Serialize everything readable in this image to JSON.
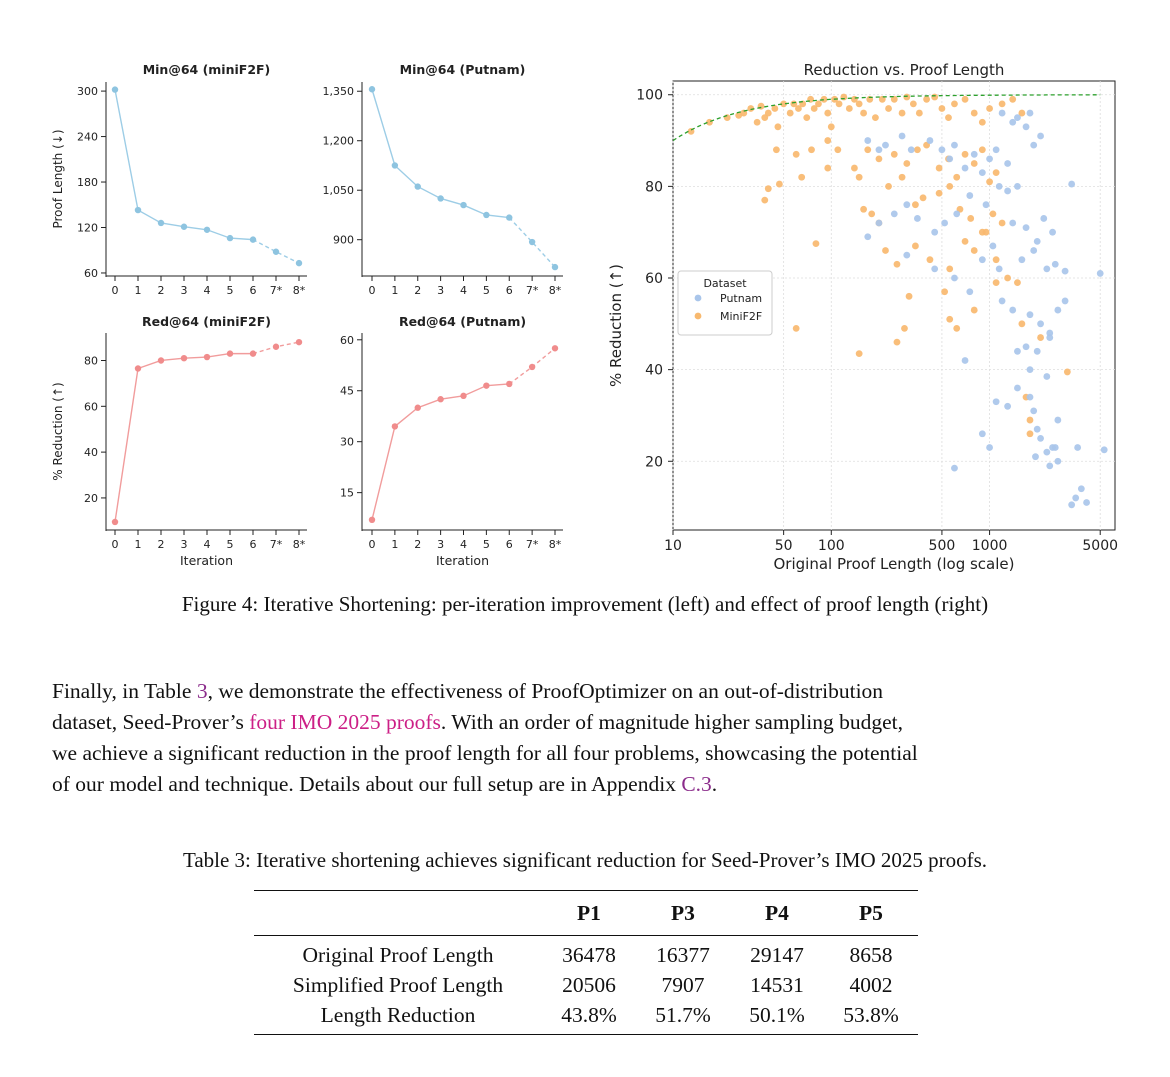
{
  "colors": {
    "putnam": "#a9c5ea",
    "minif2f": "#f8b96f",
    "line_blue": "#9dcde6",
    "line_red": "#f19c9c",
    "pt_blue": "#8ec4e0",
    "pt_red": "#f08c8c",
    "fit": "#2ca02c"
  },
  "chart_data": [
    {
      "id": "min-minif2f",
      "type": "line",
      "title": "Min@64 (miniF2F)",
      "ylabel": "Proof Length (↓)",
      "xlabel": "",
      "categories": [
        "0",
        "1",
        "2",
        "3",
        "4",
        "5",
        "6",
        "7*",
        "8*"
      ],
      "values": [
        302,
        143,
        126,
        121,
        117,
        106,
        104,
        88,
        73
      ],
      "dashed_from_index": 6,
      "yticks": [
        60,
        120,
        180,
        240,
        300
      ],
      "ylim": [
        56,
        312
      ]
    },
    {
      "id": "min-putnam",
      "type": "line",
      "title": "Min@64 (Putnam)",
      "ylabel": "",
      "xlabel": "",
      "categories": [
        "0",
        "1",
        "2",
        "3",
        "4",
        "5",
        "6",
        "7*",
        "8*"
      ],
      "values": [
        1356,
        1125,
        1061,
        1025,
        1005,
        975,
        967,
        893,
        817
      ],
      "dashed_from_index": 6,
      "yticks": [
        "900",
        "1,050",
        "1,200",
        "1,350"
      ],
      "ylim": [
        790,
        1378
      ]
    },
    {
      "id": "red-minif2f",
      "type": "line",
      "title": "Red@64 (miniF2F)",
      "ylabel": "% Reduction (↑)",
      "xlabel": "Iteration",
      "categories": [
        "0",
        "1",
        "2",
        "3",
        "4",
        "5",
        "6",
        "7*",
        "8*"
      ],
      "values": [
        9.5,
        76.5,
        80,
        81,
        81.5,
        83,
        83,
        86,
        88
      ],
      "dashed_from_index": 6,
      "yticks": [
        20,
        40,
        60,
        80
      ],
      "ylim": [
        6,
        92
      ]
    },
    {
      "id": "red-putnam",
      "type": "line",
      "title": "Red@64 (Putnam)",
      "ylabel": "",
      "xlabel": "Iteration",
      "categories": [
        "0",
        "1",
        "2",
        "3",
        "4",
        "5",
        "6",
        "7*",
        "8*"
      ],
      "values": [
        7,
        34.5,
        40,
        42.5,
        43.5,
        46.5,
        47,
        52,
        57.5
      ],
      "dashed_from_index": 6,
      "yticks": [
        15,
        30,
        45,
        60
      ],
      "ylim": [
        4,
        62
      ]
    },
    {
      "id": "scatter",
      "type": "scatter",
      "title": "Reduction vs. Proof Length",
      "xlabel": "Original Proof Length (log scale)",
      "ylabel": "% Reduction (↑)",
      "xscale": "log",
      "xlim": [
        10,
        6200
      ],
      "ylim": [
        5,
        103
      ],
      "xticks": [
        "10",
        "50",
        "100",
        "500",
        "1000",
        "5000"
      ],
      "yticks": [
        "20",
        "40",
        "60",
        "80",
        "100"
      ],
      "legend": {
        "title": "Dataset",
        "entries": [
          "Putnam",
          "MiniF2F"
        ],
        "location": "center-left"
      },
      "fit_line": {
        "style": "dashed",
        "formula": "100*(1 - 1/x)",
        "x_range": [
          10,
          5000
        ]
      },
      "series": [
        {
          "name": "MiniF2F",
          "points": [
            [
              13,
              92
            ],
            [
              17,
              94
            ],
            [
              22,
              95
            ],
            [
              26,
              95.5
            ],
            [
              28,
              96
            ],
            [
              31,
              97
            ],
            [
              34,
              94
            ],
            [
              36,
              97.5
            ],
            [
              38,
              95
            ],
            [
              40,
              96
            ],
            [
              44,
              97
            ],
            [
              46,
              93
            ],
            [
              50,
              98
            ],
            [
              55,
              96
            ],
            [
              58,
              98
            ],
            [
              62,
              97
            ],
            [
              66,
              98
            ],
            [
              70,
              95
            ],
            [
              74,
              99
            ],
            [
              78,
              97
            ],
            [
              83,
              98
            ],
            [
              90,
              99
            ],
            [
              95,
              96
            ],
            [
              100,
              93
            ],
            [
              105,
              99
            ],
            [
              112,
              98
            ],
            [
              120,
              99.5
            ],
            [
              130,
              97
            ],
            [
              140,
              99
            ],
            [
              150,
              98
            ],
            [
              160,
              96
            ],
            [
              175,
              99
            ],
            [
              190,
              95
            ],
            [
              210,
              99
            ],
            [
              230,
              97
            ],
            [
              250,
              99
            ],
            [
              280,
              96
            ],
            [
              300,
              99.5
            ],
            [
              330,
              98
            ],
            [
              360,
              96
            ],
            [
              400,
              99
            ],
            [
              450,
              99.5
            ],
            [
              500,
              97
            ],
            [
              550,
              95
            ],
            [
              600,
              98
            ],
            [
              700,
              99
            ],
            [
              800,
              96
            ],
            [
              900,
              94
            ],
            [
              1000,
              97
            ],
            [
              1200,
              98
            ],
            [
              1400,
              99
            ],
            [
              1600,
              96
            ],
            [
              45,
              88
            ],
            [
              60,
              87
            ],
            [
              75,
              88
            ],
            [
              95,
              90
            ],
            [
              110,
              88
            ],
            [
              140,
              84
            ],
            [
              170,
              88
            ],
            [
              200,
              86
            ],
            [
              250,
              87
            ],
            [
              300,
              85
            ],
            [
              350,
              88
            ],
            [
              400,
              89
            ],
            [
              480,
              84
            ],
            [
              550,
              86
            ],
            [
              620,
              82
            ],
            [
              700,
              87
            ],
            [
              800,
              85
            ],
            [
              900,
              88
            ],
            [
              1000,
              81
            ],
            [
              1100,
              83
            ],
            [
              38,
              77
            ],
            [
              40,
              79.5
            ],
            [
              47,
              80.5
            ],
            [
              65,
              82
            ],
            [
              95,
              84
            ],
            [
              150,
              82
            ],
            [
              230,
              80
            ],
            [
              280,
              82
            ],
            [
              340,
              76
            ],
            [
              380,
              77.5
            ],
            [
              480,
              78.5
            ],
            [
              560,
              80
            ],
            [
              650,
              75
            ],
            [
              760,
              73
            ],
            [
              900,
              70
            ],
            [
              1050,
              74
            ],
            [
              1200,
              72
            ],
            [
              160,
              75
            ],
            [
              180,
              74
            ],
            [
              200,
              72
            ],
            [
              220,
              66
            ],
            [
              260,
              63
            ],
            [
              340,
              67
            ],
            [
              420,
              64
            ],
            [
              560,
              62
            ],
            [
              700,
              68
            ],
            [
              800,
              66
            ],
            [
              950,
              70
            ],
            [
              1100,
              64
            ],
            [
              1300,
              60
            ],
            [
              1500,
              59
            ],
            [
              80,
              67.5
            ],
            [
              60,
              49
            ],
            [
              150,
              43.5
            ],
            [
              260,
              46
            ],
            [
              290,
              49
            ],
            [
              310,
              56
            ],
            [
              520,
              57
            ],
            [
              560,
              51
            ],
            [
              620,
              49
            ],
            [
              800,
              53
            ],
            [
              1100,
              59
            ],
            [
              1600,
              50
            ],
            [
              2100,
              47
            ],
            [
              3100,
              39.5
            ],
            [
              1700,
              34
            ],
            [
              1800,
              29
            ],
            [
              1800,
              26
            ]
          ]
        },
        {
          "name": "Putnam",
          "points": [
            [
              170,
              90
            ],
            [
              200,
              88
            ],
            [
              220,
              89
            ],
            [
              280,
              91
            ],
            [
              320,
              88
            ],
            [
              420,
              90
            ],
            [
              500,
              88
            ],
            [
              560,
              86
            ],
            [
              600,
              89
            ],
            [
              700,
              84
            ],
            [
              800,
              87
            ],
            [
              900,
              83
            ],
            [
              1000,
              86
            ],
            [
              1100,
              88
            ],
            [
              1300,
              85
            ],
            [
              1400,
              94
            ],
            [
              1200,
              96
            ],
            [
              1500,
              95
            ],
            [
              1700,
              93
            ],
            [
              1800,
              96
            ],
            [
              2100,
              91
            ],
            [
              1900,
              89
            ],
            [
              1500,
              80
            ],
            [
              1300,
              79
            ],
            [
              1150,
              80
            ],
            [
              950,
              76
            ],
            [
              750,
              78
            ],
            [
              620,
              74
            ],
            [
              520,
              72
            ],
            [
              450,
              70
            ],
            [
              350,
              73
            ],
            [
              300,
              76
            ],
            [
              250,
              74
            ],
            [
              200,
              72
            ],
            [
              170,
              69
            ],
            [
              1400,
              72
            ],
            [
              1700,
              71
            ],
            [
              2000,
              68
            ],
            [
              2300,
              62
            ],
            [
              2600,
              63
            ],
            [
              3000,
              61.5
            ],
            [
              3300,
              80.5
            ],
            [
              5000,
              61
            ],
            [
              1600,
              64
            ],
            [
              1900,
              66
            ],
            [
              2200,
              73
            ],
            [
              2500,
              70
            ],
            [
              300,
              65
            ],
            [
              450,
              62
            ],
            [
              600,
              60
            ],
            [
              750,
              57
            ],
            [
              900,
              64
            ],
            [
              1050,
              67
            ],
            [
              1150,
              62
            ],
            [
              1200,
              55
            ],
            [
              1400,
              53
            ],
            [
              1800,
              52
            ],
            [
              2100,
              50
            ],
            [
              2400,
              48
            ],
            [
              2700,
              53
            ],
            [
              3000,
              55
            ],
            [
              1700,
              45
            ],
            [
              2000,
              44
            ],
            [
              2400,
              47
            ],
            [
              1500,
              44
            ],
            [
              1800,
              40
            ],
            [
              2300,
              38.5
            ],
            [
              700,
              42
            ],
            [
              900,
              26
            ],
            [
              1100,
              33
            ],
            [
              1300,
              32
            ],
            [
              1500,
              36
            ],
            [
              1800,
              34
            ],
            [
              2000,
              27
            ],
            [
              2300,
              22
            ],
            [
              2700,
              29
            ],
            [
              1950,
              21
            ],
            [
              2400,
              19
            ],
            [
              2700,
              20
            ],
            [
              3300,
              10.5
            ],
            [
              3500,
              12
            ],
            [
              3800,
              14
            ],
            [
              4100,
              11
            ],
            [
              3600,
              23
            ],
            [
              600,
              18.5
            ],
            [
              1000,
              23
            ],
            [
              5300,
              22.5
            ],
            [
              2100,
              25
            ],
            [
              2500,
              23
            ],
            [
              1900,
              31
            ],
            [
              2600,
              23
            ]
          ]
        }
      ]
    }
  ],
  "figure_caption": "Figure 4: Iterative Shortening: per-iteration improvement (left) and effect of proof length (right)",
  "paragraph": {
    "l1_a": "Finally, in Table ",
    "l1_ref": "3",
    "l1_b": ", we demonstrate the effectiveness of ProofOptimizer on an out-of-distribution",
    "l2_a": "dataset, Seed-Prover’s ",
    "l2_link": "four IMO 2025 proofs",
    "l2_b": ". With an order of magnitude higher sampling budget,",
    "l3": "we achieve a significant reduction in the proof length for all four problems, showcasing the potential",
    "l4_a": "of our model and technique. Details about our full setup are in Appendix ",
    "l4_ref": "C.3",
    "l4_b": "."
  },
  "table": {
    "caption": "Table 3: Iterative shortening achieves significant reduction for Seed-Prover’s IMO 2025 proofs.",
    "headers": [
      "",
      "P1",
      "P3",
      "P4",
      "P5"
    ],
    "rows": [
      [
        "Original Proof Length",
        "36478",
        "16377",
        "29147",
        "8658"
      ],
      [
        "Simplified Proof Length",
        "20506",
        "7907",
        "14531",
        "4002"
      ],
      [
        "Length Reduction",
        "43.8%",
        "51.7%",
        "50.1%",
        "53.8%"
      ]
    ]
  }
}
